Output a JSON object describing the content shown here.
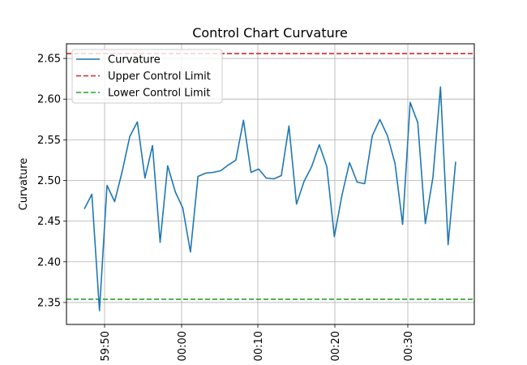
{
  "chart_data": {
    "type": "line",
    "title": "Control Chart Curvature",
    "xlabel": "",
    "ylabel": "Curvature",
    "x_tick_labels": [
      "59:50",
      "00:00",
      "00:10",
      "00:20",
      "00:30"
    ],
    "y_ticks": [
      2.35,
      2.4,
      2.45,
      2.5,
      2.55,
      2.6,
      2.65
    ],
    "ylim": [
      2.323,
      2.668
    ],
    "grid": true,
    "legend_position": "top-left",
    "series": [
      {
        "name": "Curvature",
        "color": "#1f77b4",
        "values": [
          2.465,
          2.483,
          2.34,
          2.494,
          2.474,
          2.511,
          2.554,
          2.572,
          2.503,
          2.543,
          2.424,
          2.518,
          2.486,
          2.466,
          2.412,
          2.505,
          2.509,
          2.51,
          2.512,
          2.519,
          2.525,
          2.574,
          2.51,
          2.514,
          2.503,
          2.502,
          2.506,
          2.567,
          2.471,
          2.499,
          2.517,
          2.544,
          2.517,
          2.431,
          2.482,
          2.522,
          2.498,
          2.496,
          2.555,
          2.575,
          2.555,
          2.521,
          2.446,
          2.596,
          2.571,
          2.447,
          2.504,
          2.615,
          2.421,
          2.523
        ]
      },
      {
        "name": "Upper Control Limit",
        "color": "#d62728",
        "dashed": true,
        "value": 2.656
      },
      {
        "name": "Lower Control Limit",
        "color": "#2ca02c",
        "dashed": true,
        "value": 2.354
      }
    ]
  }
}
